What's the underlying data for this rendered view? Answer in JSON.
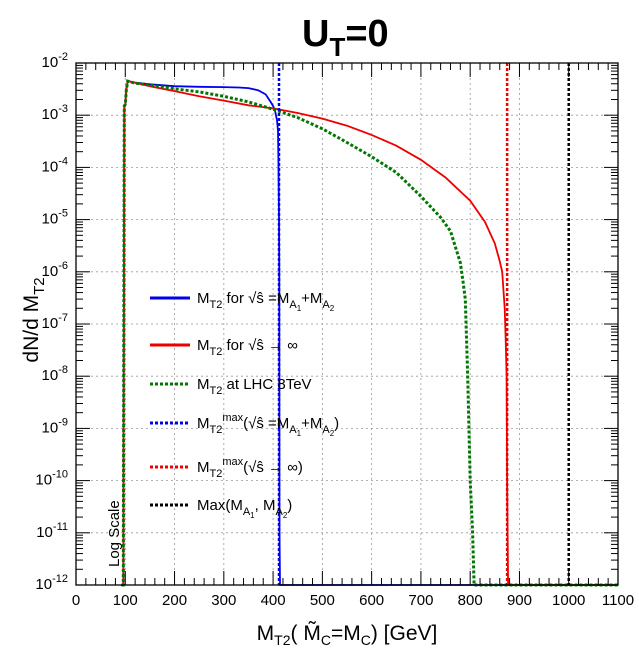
{
  "chart_data": {
    "type": "line",
    "title": "U_T=0",
    "xlabel": "M_T2( M̃_C=M_C) [GeV]",
    "ylabel": "dN/d M_T2",
    "xlim": [
      0,
      1100
    ],
    "ylim_log10": [
      -12,
      -2
    ],
    "y_scale": "log",
    "grid": true,
    "x_ticks": [
      "0",
      "100",
      "200",
      "300",
      "400",
      "500",
      "600",
      "700",
      "800",
      "900",
      "1000",
      "1100"
    ],
    "y_ticks": [
      "10^-12",
      "10^-11",
      "10^-10",
      "10^-9",
      "10^-8",
      "10^-7",
      "10^-6",
      "10^-5",
      "10^-4",
      "10^-3",
      "10^-2"
    ],
    "annotation": "Log Scale",
    "legend_position": "center-left",
    "series": [
      {
        "name": "M_T2 for √ŝ = M_A1 + M_A2",
        "color": "#0000ee",
        "style": "solid",
        "x": [
          92,
          96,
          98,
          100,
          102,
          105,
          120,
          150,
          200,
          250,
          300,
          330,
          350,
          370,
          385,
          395,
          400,
          404,
          408,
          410,
          411,
          412,
          412.5,
          413,
          414,
          416,
          420,
          500,
          700,
          900,
          1100
        ],
        "y": [
          1e-12,
          1e-12,
          0.0015,
          0.0016,
          0.003,
          0.0045,
          0.0042,
          0.0039,
          0.0036,
          0.0035,
          0.00345,
          0.0034,
          0.0033,
          0.003,
          0.0025,
          0.0018,
          0.0015,
          0.0012,
          0.0008,
          0.0005,
          0.0001,
          1e-05,
          1e-06,
          1e-11,
          1e-12,
          1e-12,
          1e-12,
          1e-12,
          1e-12,
          1e-12,
          1e-12
        ]
      },
      {
        "name": "M_T2 for √ŝ → ∞",
        "color": "#ee0000",
        "style": "solid",
        "x": [
          92,
          96,
          98,
          100,
          102,
          105,
          120,
          150,
          200,
          250,
          300,
          350,
          400,
          450,
          500,
          550,
          600,
          650,
          700,
          750,
          800,
          830,
          850,
          860,
          865,
          870,
          872,
          874,
          875,
          877,
          880,
          900,
          1100
        ],
        "y": [
          1e-12,
          1e-12,
          0.0015,
          0.0016,
          0.003,
          0.0045,
          0.0042,
          0.0036,
          0.0029,
          0.0023,
          0.0019,
          0.00155,
          0.00135,
          0.0011,
          0.00086,
          0.00063,
          0.00042,
          0.00026,
          0.00014,
          6.4e-05,
          2.3e-05,
          9e-06,
          3.5e-06,
          1.6e-06,
          1e-06,
          2e-07,
          5e-08,
          1e-08,
          1e-10,
          1e-12,
          1e-12,
          1e-12,
          1e-12
        ]
      },
      {
        "name": "M_T2 at LHC 8TeV",
        "color": "#007700",
        "style": "dotted",
        "x": [
          92,
          96,
          98,
          100,
          102,
          105,
          120,
          150,
          200,
          250,
          300,
          350,
          400,
          450,
          500,
          550,
          600,
          650,
          700,
          740,
          760,
          770,
          780,
          785,
          790,
          795,
          800,
          805,
          808,
          1100
        ],
        "y": [
          1e-12,
          1e-12,
          0.0015,
          0.0016,
          0.003,
          0.0045,
          0.0041,
          0.0038,
          0.0032,
          0.0028,
          0.0023,
          0.0018,
          0.0013,
          0.0009,
          0.00055,
          0.0003,
          0.00016,
          8e-05,
          2.8e-05,
          1.1e-05,
          6e-06,
          3e-06,
          1.5e-06,
          7e-07,
          3e-07,
          1e-08,
          1e-10,
          1e-11,
          1e-12,
          1e-12
        ]
      },
      {
        "name": "M_T2^max (√ŝ = M_A1 + M_A2)",
        "color": "#0000ee",
        "style": "dotted",
        "vline": 412
      },
      {
        "name": "M_T2^max (√ŝ → ∞)",
        "color": "#ee0000",
        "style": "dotted",
        "vline": 875
      },
      {
        "name": "Max(M_A1 , M_A2)",
        "color": "#000000",
        "style": "dotted",
        "vline": 1000
      }
    ]
  }
}
